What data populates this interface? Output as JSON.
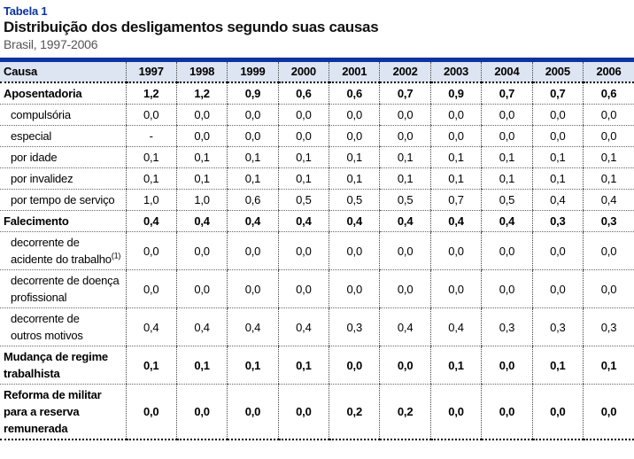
{
  "table_label": "Tabela 1",
  "title": "Distribuição dos desligamentos segundo suas causas",
  "subtitle": "Brasil, 1997-2006",
  "colors": {
    "accent_blue": "#0d33a0",
    "header_bg": "#dde4f2",
    "subtitle_gray": "#555555"
  },
  "columns": [
    "Causa",
    "1997",
    "1998",
    "1999",
    "2000",
    "2001",
    "2002",
    "2003",
    "2004",
    "2005",
    "2006"
  ],
  "rows": [
    {
      "label": "Aposentadoria",
      "bold": true,
      "indent": false,
      "values": [
        "1,2",
        "1,2",
        "0,9",
        "0,6",
        "0,6",
        "0,7",
        "0,9",
        "0,7",
        "0,7",
        "0,6"
      ]
    },
    {
      "label": "compulsória",
      "bold": false,
      "indent": true,
      "values": [
        "0,0",
        "0,0",
        "0,0",
        "0,0",
        "0,0",
        "0,0",
        "0,0",
        "0,0",
        "0,0",
        "0,0"
      ]
    },
    {
      "label": "especial",
      "bold": false,
      "indent": true,
      "values": [
        "-",
        "0,0",
        "0,0",
        "0,0",
        "0,0",
        "0,0",
        "0,0",
        "0,0",
        "0,0",
        "0,0"
      ]
    },
    {
      "label": "por idade",
      "bold": false,
      "indent": true,
      "values": [
        "0,1",
        "0,1",
        "0,1",
        "0,1",
        "0,1",
        "0,1",
        "0,1",
        "0,1",
        "0,1",
        "0,1"
      ]
    },
    {
      "label": "por invalidez",
      "bold": false,
      "indent": true,
      "values": [
        "0,1",
        "0,1",
        "0,1",
        "0,1",
        "0,1",
        "0,1",
        "0,1",
        "0,1",
        "0,1",
        "0,1"
      ]
    },
    {
      "label": "por tempo de serviço",
      "bold": false,
      "indent": true,
      "values": [
        "1,0",
        "1,0",
        "0,6",
        "0,5",
        "0,5",
        "0,5",
        "0,7",
        "0,5",
        "0,4",
        "0,4"
      ]
    },
    {
      "label": "Falecimento",
      "bold": true,
      "indent": false,
      "values": [
        "0,4",
        "0,4",
        "0,4",
        "0,4",
        "0,4",
        "0,4",
        "0,4",
        "0,4",
        "0,3",
        "0,3"
      ]
    },
    {
      "label": "decorrente de\nacidente do trabalho",
      "sup": "(1)",
      "bold": false,
      "indent": true,
      "values": [
        "0,0",
        "0,0",
        "0,0",
        "0,0",
        "0,0",
        "0,0",
        "0,0",
        "0,0",
        "0,0",
        "0,0"
      ]
    },
    {
      "label": "decorrente de doença\nprofissional",
      "bold": false,
      "indent": true,
      "values": [
        "0,0",
        "0,0",
        "0,0",
        "0,0",
        "0,0",
        "0,0",
        "0,0",
        "0,0",
        "0,0",
        "0,0"
      ]
    },
    {
      "label": "decorrente de\noutros motivos",
      "bold": false,
      "indent": true,
      "values": [
        "0,4",
        "0,4",
        "0,4",
        "0,4",
        "0,3",
        "0,4",
        "0,4",
        "0,3",
        "0,3",
        "0,3"
      ]
    },
    {
      "label": "Mudança de regime\ntrabalhista",
      "bold": true,
      "indent": false,
      "values": [
        "0,1",
        "0,1",
        "0,1",
        "0,1",
        "0,0",
        "0,0",
        "0,1",
        "0,0",
        "0,1",
        "0,1"
      ]
    },
    {
      "label": "Reforma de militar\npara a reserva\nremunerada",
      "bold": true,
      "indent": false,
      "values": [
        "0,0",
        "0,0",
        "0,0",
        "0,0",
        "0,2",
        "0,2",
        "0,0",
        "0,0",
        "0,0",
        "0,0"
      ]
    }
  ]
}
